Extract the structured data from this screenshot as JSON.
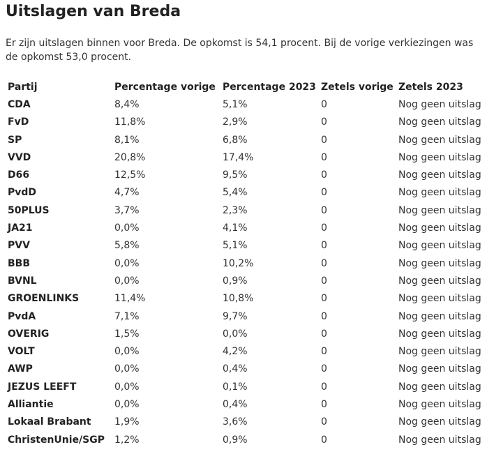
{
  "title": "Uitslagen van Breda",
  "intro": "Er zijn uitslagen binnen voor Breda. De opkomst is 54,1 procent. Bij de vorige verkiezingen was de opkomst 53,0 procent.",
  "table": {
    "headers": [
      "Partij",
      "Percentage vorige",
      "Percentage 2023",
      "Zetels vorige",
      "Zetels 2023"
    ],
    "rows": [
      [
        "CDA",
        "8,4%",
        "5,1%",
        "0",
        "Nog geen uitslag"
      ],
      [
        "FvD",
        "11,8%",
        "2,9%",
        "0",
        "Nog geen uitslag"
      ],
      [
        "SP",
        "8,1%",
        "6,8%",
        "0",
        "Nog geen uitslag"
      ],
      [
        "VVD",
        "20,8%",
        "17,4%",
        "0",
        "Nog geen uitslag"
      ],
      [
        "D66",
        "12,5%",
        "9,5%",
        "0",
        "Nog geen uitslag"
      ],
      [
        "PvdD",
        "4,7%",
        "5,4%",
        "0",
        "Nog geen uitslag"
      ],
      [
        "50PLUS",
        "3,7%",
        "2,3%",
        "0",
        "Nog geen uitslag"
      ],
      [
        "JA21",
        "0,0%",
        "4,1%",
        "0",
        "Nog geen uitslag"
      ],
      [
        "PVV",
        "5,8%",
        "5,1%",
        "0",
        "Nog geen uitslag"
      ],
      [
        "BBB",
        "0,0%",
        "10,2%",
        "0",
        "Nog geen uitslag"
      ],
      [
        "BVNL",
        "0,0%",
        "0,9%",
        "0",
        "Nog geen uitslag"
      ],
      [
        "GROENLINKS",
        "11,4%",
        "10,8%",
        "0",
        "Nog geen uitslag"
      ],
      [
        "PvdA",
        "7,1%",
        "9,7%",
        "0",
        "Nog geen uitslag"
      ],
      [
        "OVERIG",
        "1,5%",
        "0,0%",
        "0",
        "Nog geen uitslag"
      ],
      [
        "VOLT",
        "0,0%",
        "4,2%",
        "0",
        "Nog geen uitslag"
      ],
      [
        "AWP",
        "0,0%",
        "0,4%",
        "0",
        "Nog geen uitslag"
      ],
      [
        "JEZUS LEEFT",
        "0,0%",
        "0,1%",
        "0",
        "Nog geen uitslag"
      ],
      [
        "Alliantie",
        "0,0%",
        "0,4%",
        "0",
        "Nog geen uitslag"
      ],
      [
        "Lokaal Brabant",
        "1,9%",
        "3,6%",
        "0",
        "Nog geen uitslag"
      ],
      [
        "ChristenUnie/SGP",
        "1,2%",
        "0,9%",
        "0",
        "Nog geen uitslag"
      ]
    ]
  }
}
